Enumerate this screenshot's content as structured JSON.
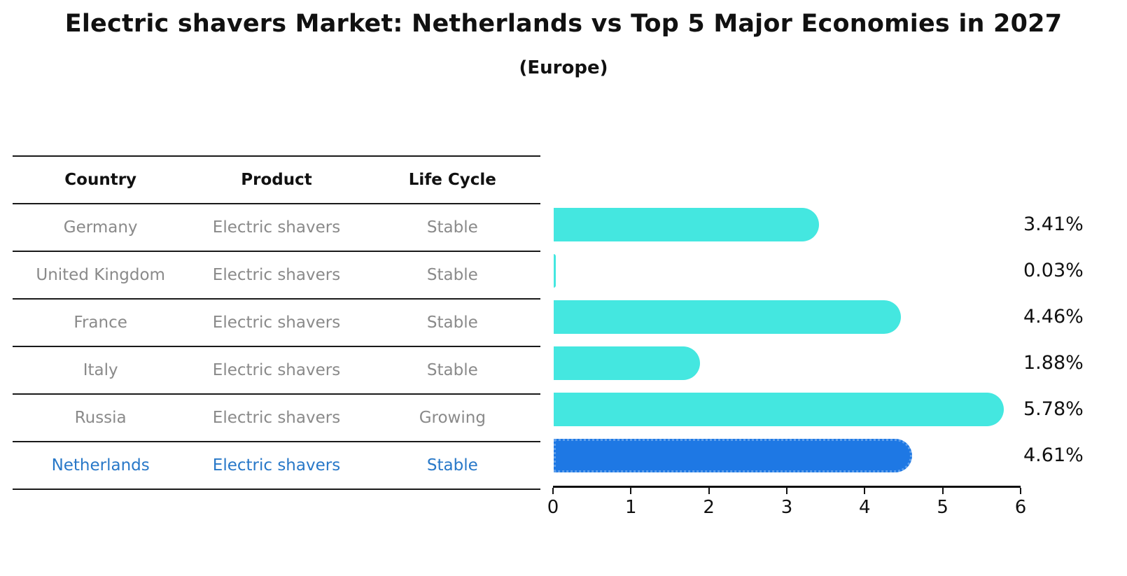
{
  "title": "Electric shavers Market: Netherlands vs Top 5 Major Economies in 2027",
  "subtitle": "(Europe)",
  "table": {
    "headers": [
      "Country",
      "Product",
      "Life Cycle"
    ],
    "rows": [
      {
        "country": "Germany",
        "product": "Electric shavers",
        "life_cycle": "Stable"
      },
      {
        "country": "United Kingdom",
        "product": "Electric shavers",
        "life_cycle": "Stable"
      },
      {
        "country": "France",
        "product": "Electric shavers",
        "life_cycle": "Stable"
      },
      {
        "country": "Italy",
        "product": "Electric shavers",
        "life_cycle": "Stable"
      },
      {
        "country": "Russia",
        "product": "Electric shavers",
        "life_cycle": "Growing"
      },
      {
        "country": "Netherlands",
        "product": "Electric shavers",
        "life_cycle": "Stable"
      }
    ]
  },
  "chart_data": {
    "type": "bar",
    "orientation": "horizontal",
    "title": "Electric shavers Market: Netherlands vs Top 5 Major Economies in 2027",
    "subtitle": "(Europe)",
    "categories": [
      "Germany",
      "United Kingdom",
      "France",
      "Italy",
      "Russia",
      "Netherlands"
    ],
    "values": [
      3.41,
      0.03,
      4.46,
      1.88,
      5.78,
      4.61
    ],
    "value_labels": [
      "3.41%",
      "0.03%",
      "4.46%",
      "1.88%",
      "5.78%",
      "4.61%"
    ],
    "xlim": [
      0,
      6
    ],
    "x_ticks": [
      "0",
      "1",
      "2",
      "3",
      "4",
      "5",
      "6"
    ],
    "highlight_index": 5,
    "grid": false,
    "legend": false,
    "colors": {
      "bar": "#44E7E0",
      "highlight_bar": "#1E78E4",
      "highlight_edge": "#5FA0EC",
      "highlight_text": "#2878C8",
      "row_text": "#8a8a8a",
      "axis": "#111111"
    }
  }
}
